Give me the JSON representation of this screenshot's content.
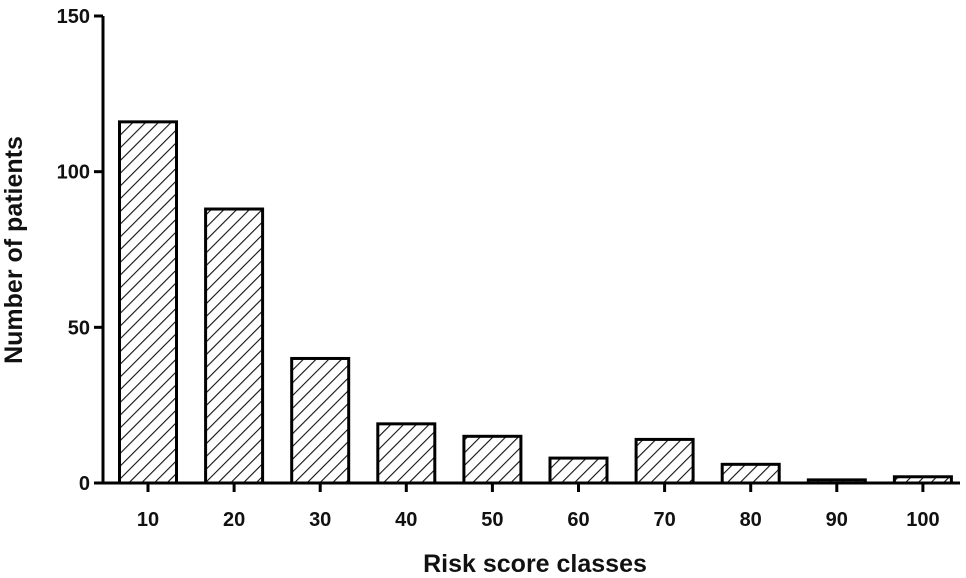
{
  "chart_data": {
    "type": "bar",
    "title": "",
    "xlabel": "Risk score classes",
    "ylabel": "Number of patients",
    "categories": [
      "10",
      "20",
      "30",
      "40",
      "50",
      "60",
      "70",
      "80",
      "90",
      "100"
    ],
    "values": [
      116,
      88,
      40,
      19,
      15,
      8,
      14,
      6,
      1,
      2
    ],
    "ylim": [
      0,
      150
    ],
    "yticks": [
      "0",
      "50",
      "100",
      "150"
    ],
    "grid": false,
    "legend": "none",
    "bar_fill": "diagonal-hatch",
    "colors": {
      "bar_stroke": "#000000",
      "hatch": "#111111",
      "axis": "#000000",
      "background": "#ffffff"
    }
  }
}
